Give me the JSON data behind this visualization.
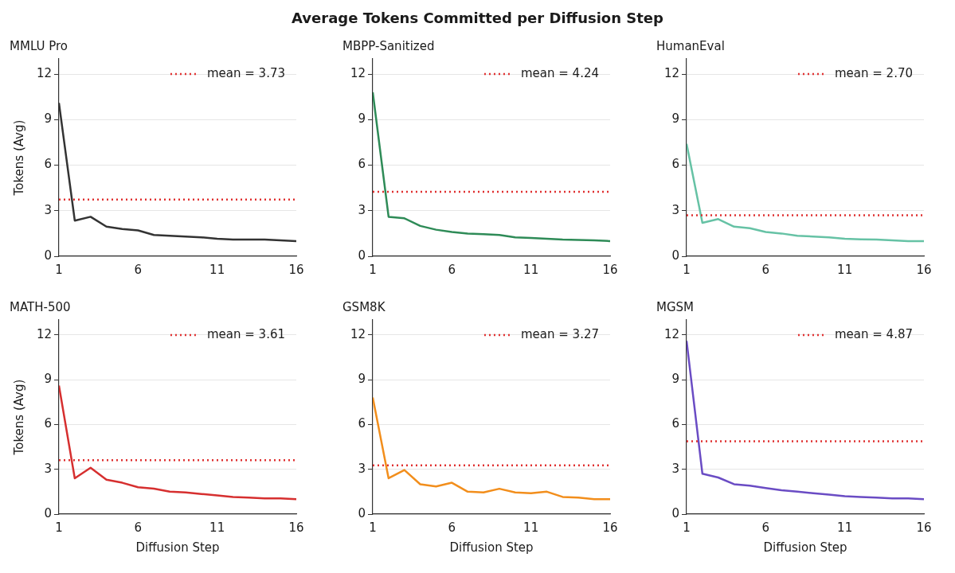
{
  "chart_data": [
    {
      "type": "other",
      "title": "Average Tokens Committed per Diffusion Step"
    },
    {
      "type": "line",
      "title": "MMLU Pro",
      "ylabel": "Tokens (Avg)",
      "x": [
        1,
        2,
        3,
        4,
        5,
        6,
        7,
        8,
        9,
        10,
        11,
        12,
        13,
        14,
        15,
        16
      ],
      "xlim": [
        1,
        16
      ],
      "xticks": [
        1,
        6,
        11,
        16
      ],
      "ylim": [
        0,
        13
      ],
      "yticks": [
        0,
        3,
        6,
        9,
        12
      ],
      "grid": "y",
      "legend": "top right",
      "line_style": "solid",
      "marker": "none",
      "series": [
        {
          "color": "#333333",
          "values": [
            10.1,
            2.35,
            2.6,
            1.95,
            1.8,
            1.7,
            1.4,
            1.35,
            1.3,
            1.25,
            1.15,
            1.1,
            1.1,
            1.1,
            1.05,
            1.0
          ]
        }
      ],
      "ref_lines": [
        {
          "axis": "y",
          "value": 3.73,
          "label": "mean = 3.73",
          "color": "#e03030",
          "line_style": "dotted"
        }
      ]
    },
    {
      "type": "line",
      "title": "MBPP-Sanitized",
      "x": [
        1,
        2,
        3,
        4,
        5,
        6,
        7,
        8,
        9,
        10,
        11,
        12,
        13,
        14,
        15,
        16
      ],
      "xlim": [
        1,
        16
      ],
      "xticks": [
        1,
        6,
        11,
        16
      ],
      "ylim": [
        0,
        13
      ],
      "yticks": [
        0,
        3,
        6,
        9,
        12
      ],
      "grid": "y",
      "legend": "top right",
      "line_style": "solid",
      "marker": "none",
      "series": [
        {
          "color": "#2e8b57",
          "values": [
            10.8,
            2.6,
            2.5,
            2.0,
            1.75,
            1.6,
            1.5,
            1.45,
            1.4,
            1.25,
            1.2,
            1.15,
            1.1,
            1.08,
            1.05,
            1.0
          ]
        }
      ],
      "ref_lines": [
        {
          "axis": "y",
          "value": 4.24,
          "label": "mean = 4.24",
          "color": "#e03030",
          "line_style": "dotted"
        }
      ]
    },
    {
      "type": "line",
      "title": "HumanEval",
      "x": [
        1,
        2,
        3,
        4,
        5,
        6,
        7,
        8,
        9,
        10,
        11,
        12,
        13,
        14,
        15,
        16
      ],
      "xlim": [
        1,
        16
      ],
      "xticks": [
        1,
        6,
        11,
        16
      ],
      "ylim": [
        0,
        13
      ],
      "yticks": [
        0,
        3,
        6,
        9,
        12
      ],
      "grid": "y",
      "legend": "top right",
      "line_style": "solid",
      "marker": "none",
      "series": [
        {
          "color": "#66c2a5",
          "values": [
            7.4,
            2.2,
            2.45,
            1.95,
            1.85,
            1.6,
            1.5,
            1.35,
            1.3,
            1.25,
            1.15,
            1.12,
            1.1,
            1.05,
            1.0,
            1.0
          ]
        }
      ],
      "ref_lines": [
        {
          "axis": "y",
          "value": 2.7,
          "label": "mean = 2.70",
          "color": "#e03030",
          "line_style": "dotted"
        }
      ]
    },
    {
      "type": "line",
      "title": "MATH-500",
      "ylabel": "Tokens (Avg)",
      "xlabel": "Diffusion Step",
      "x": [
        1,
        2,
        3,
        4,
        5,
        6,
        7,
        8,
        9,
        10,
        11,
        12,
        13,
        14,
        15,
        16
      ],
      "xlim": [
        1,
        16
      ],
      "xticks": [
        1,
        6,
        11,
        16
      ],
      "ylim": [
        0,
        13
      ],
      "yticks": [
        0,
        3,
        6,
        9,
        12
      ],
      "grid": "y",
      "legend": "top right",
      "line_style": "solid",
      "marker": "none",
      "series": [
        {
          "color": "#d62f2f",
          "values": [
            8.6,
            2.4,
            3.1,
            2.3,
            2.1,
            1.8,
            1.7,
            1.5,
            1.45,
            1.35,
            1.25,
            1.15,
            1.1,
            1.05,
            1.05,
            1.0
          ]
        }
      ],
      "ref_lines": [
        {
          "axis": "y",
          "value": 3.61,
          "label": "mean = 3.61",
          "color": "#e03030",
          "line_style": "dotted"
        }
      ]
    },
    {
      "type": "line",
      "title": "GSM8K",
      "xlabel": "Diffusion Step",
      "x": [
        1,
        2,
        3,
        4,
        5,
        6,
        7,
        8,
        9,
        10,
        11,
        12,
        13,
        14,
        15,
        16
      ],
      "xlim": [
        1,
        16
      ],
      "xticks": [
        1,
        6,
        11,
        16
      ],
      "ylim": [
        0,
        13
      ],
      "yticks": [
        0,
        3,
        6,
        9,
        12
      ],
      "grid": "y",
      "legend": "top right",
      "line_style": "solid",
      "marker": "none",
      "series": [
        {
          "color": "#f28e1c",
          "values": [
            7.8,
            2.4,
            2.95,
            2.0,
            1.85,
            2.1,
            1.5,
            1.45,
            1.7,
            1.45,
            1.4,
            1.5,
            1.15,
            1.1,
            1.0,
            1.0
          ]
        }
      ],
      "ref_lines": [
        {
          "axis": "y",
          "value": 3.27,
          "label": "mean = 3.27",
          "color": "#e03030",
          "line_style": "dotted"
        }
      ]
    },
    {
      "type": "line",
      "title": "MGSM",
      "xlabel": "Diffusion Step",
      "x": [
        1,
        2,
        3,
        4,
        5,
        6,
        7,
        8,
        9,
        10,
        11,
        12,
        13,
        14,
        15,
        16
      ],
      "xlim": [
        1,
        16
      ],
      "xticks": [
        1,
        6,
        11,
        16
      ],
      "ylim": [
        0,
        13
      ],
      "yticks": [
        0,
        3,
        6,
        9,
        12
      ],
      "grid": "y",
      "legend": "top right",
      "line_style": "solid",
      "marker": "none",
      "series": [
        {
          "color": "#6a4cc4",
          "values": [
            11.6,
            2.7,
            2.45,
            2.0,
            1.9,
            1.75,
            1.6,
            1.5,
            1.4,
            1.3,
            1.2,
            1.15,
            1.1,
            1.05,
            1.05,
            1.0
          ]
        }
      ],
      "ref_lines": [
        {
          "axis": "y",
          "value": 4.87,
          "label": "mean = 4.87",
          "color": "#e03030",
          "line_style": "dotted"
        }
      ]
    }
  ]
}
